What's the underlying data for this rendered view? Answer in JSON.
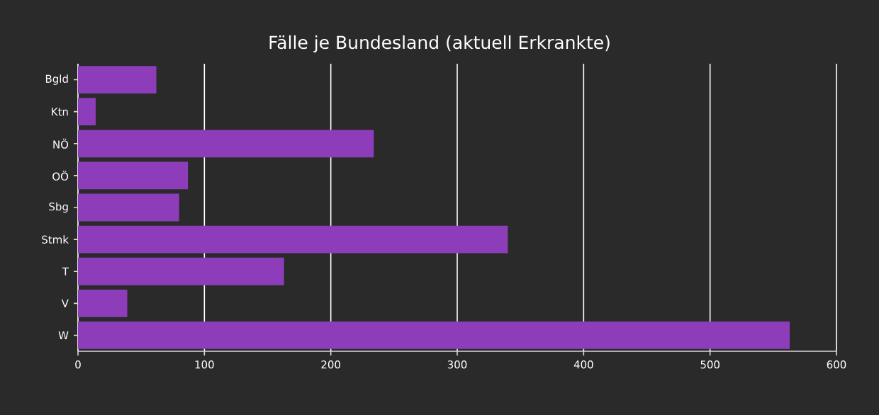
{
  "chart_data": {
    "type": "bar",
    "orientation": "horizontal",
    "title": "Fälle je Bundesland (aktuell Erkrankte)",
    "categories": [
      "Bgld",
      "Ktn",
      "NÖ",
      "OÖ",
      "Sbg",
      "Stmk",
      "T",
      "V",
      "W"
    ],
    "values": [
      62,
      14,
      234,
      87,
      80,
      340,
      163,
      39,
      563
    ],
    "color": "#8e3dba",
    "xlim": [
      0,
      600
    ],
    "xticks": [
      0,
      100,
      200,
      300,
      400,
      500,
      600
    ],
    "grid": "x"
  }
}
